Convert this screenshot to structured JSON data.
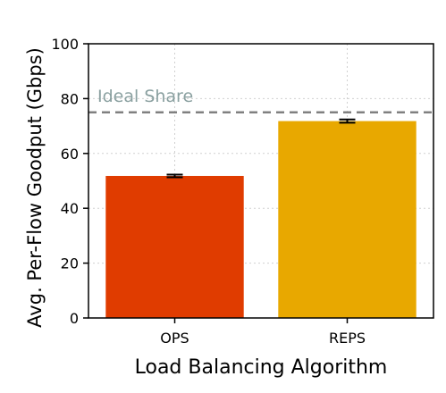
{
  "chart_data": {
    "type": "bar",
    "title": "",
    "xlabel": "Load Balancing Algorithm",
    "ylabel": "Avg. Per-Flow Goodput (Gbps)",
    "categories": [
      "OPS",
      "REPS"
    ],
    "values": [
      51.8,
      71.8
    ],
    "error": [
      0.5,
      0.6
    ],
    "colors": [
      "#e03c00",
      "#e8a800"
    ],
    "ylim": [
      0,
      100
    ],
    "yticks": [
      0,
      20,
      40,
      60,
      80,
      100
    ],
    "grid": true,
    "reference_line": {
      "value": 75,
      "label": "Ideal Share",
      "color": "#808080",
      "label_color": "#8aa0a0"
    }
  }
}
